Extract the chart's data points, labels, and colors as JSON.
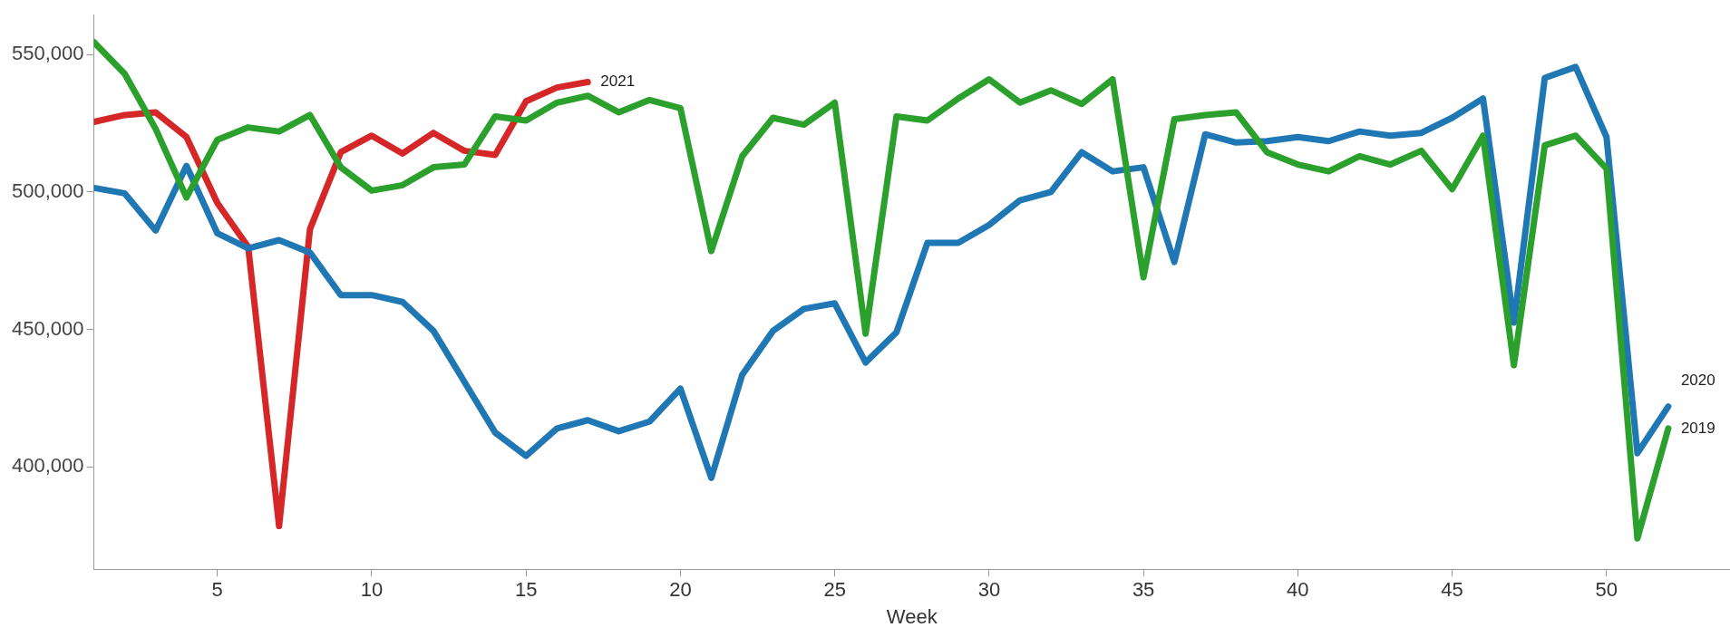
{
  "chart_data": {
    "type": "line",
    "xlabel": "Week",
    "xlim": [
      1,
      54
    ],
    "xticks": [
      5,
      10,
      15,
      20,
      25,
      30,
      35,
      40,
      45,
      50
    ],
    "ylim": [
      362800,
      564500
    ],
    "yticks": [
      {
        "value": 400000,
        "label": "400,000"
      },
      {
        "value": 450000,
        "label": "450,000"
      },
      {
        "value": 500000,
        "label": "500,000"
      },
      {
        "value": 550000,
        "label": "550,000"
      }
    ],
    "grid": false,
    "legend": false,
    "marker": "none",
    "line_style": "solid",
    "series": [
      {
        "name": "2019",
        "color": "#2ca02c",
        "x": [
          1,
          2,
          3,
          4,
          5,
          6,
          7,
          8,
          9,
          10,
          11,
          12,
          13,
          14,
          15,
          16,
          17,
          18,
          19,
          20,
          21,
          22,
          23,
          24,
          25,
          26,
          27,
          28,
          29,
          30,
          31,
          32,
          33,
          34,
          35,
          36,
          37,
          38,
          39,
          40,
          41,
          42,
          43,
          44,
          45,
          46,
          47,
          48,
          49,
          50,
          51,
          52
        ],
        "values": [
          554500,
          543000,
          523000,
          498000,
          519000,
          523500,
          522000,
          528000,
          509000,
          500500,
          502500,
          509000,
          510000,
          527500,
          526000,
          532500,
          535000,
          529000,
          533500,
          530500,
          478500,
          513000,
          527000,
          524500,
          532500,
          448500,
          527500,
          526000,
          534000,
          541000,
          532500,
          537000,
          532000,
          541000,
          469000,
          526500,
          528000,
          529000,
          514500,
          510000,
          507500,
          513000,
          510000,
          515000,
          501000,
          520500,
          437000,
          517000,
          520500,
          508500,
          374000,
          414000
        ]
      },
      {
        "name": "2020",
        "color": "#1f77b4",
        "x": [
          1,
          2,
          3,
          4,
          5,
          6,
          7,
          8,
          9,
          10,
          11,
          12,
          13,
          14,
          15,
          16,
          17,
          18,
          19,
          20,
          21,
          22,
          23,
          24,
          25,
          26,
          27,
          28,
          29,
          30,
          31,
          32,
          33,
          34,
          35,
          36,
          37,
          38,
          39,
          40,
          41,
          42,
          43,
          44,
          45,
          46,
          47,
          48,
          49,
          50,
          51,
          52
        ],
        "values": [
          501500,
          499500,
          486000,
          509500,
          485000,
          479500,
          482500,
          478000,
          462500,
          462500,
          460000,
          449500,
          431000,
          412500,
          404000,
          414000,
          417000,
          413000,
          416500,
          428500,
          396000,
          433500,
          449500,
          457500,
          459500,
          438000,
          449000,
          481500,
          481500,
          488000,
          497000,
          500000,
          514500,
          507500,
          509000,
          474500,
          521000,
          518000,
          518500,
          520000,
          518500,
          522000,
          520500,
          521500,
          527000,
          534000,
          452500,
          541500,
          545500,
          520000,
          405000,
          422000
        ]
      },
      {
        "name": "2021",
        "color": "#d62728",
        "x": [
          1,
          2,
          3,
          4,
          5,
          6,
          7,
          8,
          9,
          10,
          11,
          12,
          13,
          14,
          15,
          16,
          17
        ],
        "values": [
          525500,
          528000,
          529000,
          520000,
          496000,
          480000,
          378500,
          486500,
          514500,
          520500,
          514000,
          521500,
          515000,
          513500,
          533000,
          538000,
          540000
        ]
      }
    ]
  }
}
